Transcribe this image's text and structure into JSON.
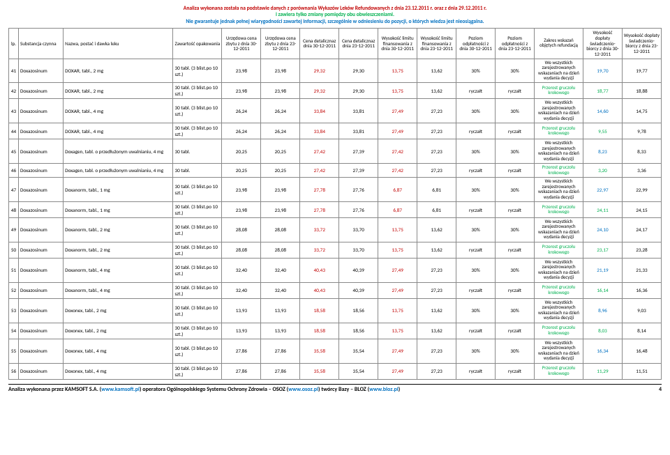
{
  "header": {
    "line1": "Analiza wykonana została na podstawie danych z porównania Wykazów Leków Refundowanych z dnia 23.12.2011 r. oraz z dnia 29.12.2011 r.",
    "line2": "i zawiera tylko zmiany pomiędzy obu obwieszczeniami.",
    "line3": "Nie gwarantuje jednak pełnej wiarygodności zawartej informacji, szczególnie w odniesieniu do pozycji, o których wiedza jest nieosiągalna."
  },
  "columns": [
    "lp.",
    "Substancja czynna",
    "Nazwa, postać i dawka leku",
    "Zawartość opakowania",
    "Urzędowa cena zbytu z dnia 30-12-2011",
    "Urzędowa cena zbytu z dnia 23-12-2011",
    "Cena detalicznaz dnia 30-12-2011",
    "Cena detalicznaz dnia 23-12-2011",
    "Wysokość limitu finansowania z dnia 30-12-2011",
    "Wysokość limitu finansowania z dnia 23-12-2011",
    "Poziom odpłatności z dnia 30-12-2011",
    "Poziom odpłatności z dnia 23-12-2011",
    "Zakres wskazań objętych refundacją",
    "Wysokość dopłaty świadczenio-biorcy z dnia 30-12-2011",
    "Wysokość dopłaty świadczenio-biorcy z dnia 23-12-2011"
  ],
  "scopes": {
    "all": "We wszystkich zarejestrowanych wskazaniach na dzień wydania decyzji",
    "przerost": "Przerost gruczołu krokowego"
  },
  "rows": [
    {
      "lp": "41",
      "sub": "Doxazosinum",
      "naz": "DOXAR, tabl., 2 mg",
      "zaw": "30 tabl. (3 blist.po 10 szt.)",
      "c1": "23,98",
      "c2": "23,98",
      "c3": "29,32",
      "c4": "29,30",
      "c5": "13,75",
      "c6": "13,62",
      "c7": "30%",
      "c8": "30%",
      "zak": "all",
      "d1": "19,70",
      "d2": "19,77"
    },
    {
      "lp": "42",
      "sub": "Doxazosinum",
      "naz": "DOXAR, tabl., 2 mg",
      "zaw": "30 tabl. (3 blist.po 10 szt.)",
      "c1": "23,98",
      "c2": "23,98",
      "c3": "29,32",
      "c4": "29,30",
      "c5": "13,75",
      "c6": "13,62",
      "c7": "ryczałt",
      "c8": "ryczałt",
      "zak": "przerost",
      "d1": "18,77",
      "d2": "18,88"
    },
    {
      "lp": "43",
      "sub": "Doxazosinum",
      "naz": "DOXAR, tabl., 4 mg",
      "zaw": "30 tabl. (3 blist.po 10 szt.)",
      "c1": "26,24",
      "c2": "26,24",
      "c3": "33,84",
      "c4": "33,81",
      "c5": "27,49",
      "c6": "27,23",
      "c7": "30%",
      "c8": "30%",
      "zak": "all",
      "d1": "14,60",
      "d2": "14,75"
    },
    {
      "lp": "44",
      "sub": "Doxazosinum",
      "naz": "DOXAR, tabl., 4 mg",
      "zaw": "30 tabl. (3 blist.po 10 szt.)",
      "c1": "26,24",
      "c2": "26,24",
      "c3": "33,84",
      "c4": "33,81",
      "c5": "27,49",
      "c6": "27,23",
      "c7": "ryczałt",
      "c8": "ryczałt",
      "zak": "przerost",
      "d1": "9,55",
      "d2": "9,78"
    },
    {
      "lp": "45",
      "sub": "Doxazosinum",
      "naz": "Doxagen, tabl. o przedłużonym uwalnianiu, 4 mg",
      "zaw": "30 tabl.",
      "c1": "20,25",
      "c2": "20,25",
      "c3": "27,42",
      "c4": "27,39",
      "c5": "27,42",
      "c6": "27,23",
      "c7": "30%",
      "c8": "30%",
      "zak": "all",
      "d1": "8,23",
      "d2": "8,33"
    },
    {
      "lp": "46",
      "sub": "Doxazosinum",
      "naz": "Doxagen, tabl. o przedłużonym uwalnianiu, 4 mg",
      "zaw": "30 tabl.",
      "c1": "20,25",
      "c2": "20,25",
      "c3": "27,42",
      "c4": "27,39",
      "c5": "27,42",
      "c6": "27,23",
      "c7": "ryczałt",
      "c8": "ryczałt",
      "zak": "przerost",
      "d1": "3,20",
      "d2": "3,36"
    },
    {
      "lp": "47",
      "sub": "Doxazosinum",
      "naz": "Doxanorm, tabl., 1 mg",
      "zaw": "30 tabl. (3 blist.po 10 szt.)",
      "c1": "23,98",
      "c2": "23,98",
      "c3": "27,78",
      "c4": "27,76",
      "c5": "6,87",
      "c6": "6,81",
      "c7": "30%",
      "c8": "30%",
      "zak": "all",
      "d1": "22,97",
      "d2": "22,99"
    },
    {
      "lp": "48",
      "sub": "Doxazosinum",
      "naz": "Doxanorm, tabl., 1 mg",
      "zaw": "30 tabl. (3 blist.po 10 szt.)",
      "c1": "23,98",
      "c2": "23,98",
      "c3": "27,78",
      "c4": "27,76",
      "c5": "6,87",
      "c6": "6,81",
      "c7": "ryczałt",
      "c8": "ryczałt",
      "zak": "przerost",
      "d1": "24,11",
      "d2": "24,15"
    },
    {
      "lp": "49",
      "sub": "Doxazosinum",
      "naz": "Doxanorm, tabl., 2 mg",
      "zaw": "30 tabl. (3 blist.po 10 szt.)",
      "c1": "28,08",
      "c2": "28,08",
      "c3": "33,72",
      "c4": "33,70",
      "c5": "13,75",
      "c6": "13,62",
      "c7": "30%",
      "c8": "30%",
      "zak": "all",
      "d1": "24,10",
      "d2": "24,17"
    },
    {
      "lp": "50",
      "sub": "Doxazosinum",
      "naz": "Doxanorm, tabl., 2 mg",
      "zaw": "30 tabl. (3 blist.po 10 szt.)",
      "c1": "28,08",
      "c2": "28,08",
      "c3": "33,72",
      "c4": "33,70",
      "c5": "13,75",
      "c6": "13,62",
      "c7": "ryczałt",
      "c8": "ryczałt",
      "zak": "przerost",
      "d1": "23,17",
      "d2": "23,28"
    },
    {
      "lp": "51",
      "sub": "Doxazosinum",
      "naz": "Doxanorm, tabl., 4 mg",
      "zaw": "30 tabl. (3 blist.po 10 szt.)",
      "c1": "32,40",
      "c2": "32,40",
      "c3": "40,43",
      "c4": "40,39",
      "c5": "27,49",
      "c6": "27,23",
      "c7": "30%",
      "c8": "30%",
      "zak": "all",
      "d1": "21,19",
      "d2": "21,33"
    },
    {
      "lp": "52",
      "sub": "Doxazosinum",
      "naz": "Doxanorm, tabl., 4 mg",
      "zaw": "30 tabl. (3 blist.po 10 szt.)",
      "c1": "32,40",
      "c2": "32,40",
      "c3": "40,43",
      "c4": "40,39",
      "c5": "27,49",
      "c6": "27,23",
      "c7": "ryczałt",
      "c8": "ryczałt",
      "zak": "przerost",
      "d1": "16,14",
      "d2": "16,36"
    },
    {
      "lp": "53",
      "sub": "Doxazosinum",
      "naz": "Doxonex, tabl., 2 mg",
      "zaw": "30 tabl. (3 blist.po 10 szt.)",
      "c1": "13,93",
      "c2": "13,93",
      "c3": "18,58",
      "c4": "18,56",
      "c5": "13,75",
      "c6": "13,62",
      "c7": "30%",
      "c8": "30%",
      "zak": "all",
      "d1": "8,96",
      "d2": "9,03"
    },
    {
      "lp": "54",
      "sub": "Doxazosinum",
      "naz": "Doxonex, tabl., 2 mg",
      "zaw": "30 tabl. (3 blist.po 10 szt.)",
      "c1": "13,93",
      "c2": "13,93",
      "c3": "18,58",
      "c4": "18,56",
      "c5": "13,75",
      "c6": "13,62",
      "c7": "ryczałt",
      "c8": "ryczałt",
      "zak": "przerost",
      "d1": "8,03",
      "d2": "8,14"
    },
    {
      "lp": "55",
      "sub": "Doxazosinum",
      "naz": "Doxonex, tabl., 4 mg",
      "zaw": "30 tabl. (3 blist.po 10 szt.)",
      "c1": "27,86",
      "c2": "27,86",
      "c3": "35,58",
      "c4": "35,54",
      "c5": "27,49",
      "c6": "27,23",
      "c7": "30%",
      "c8": "30%",
      "zak": "all",
      "d1": "16,34",
      "d2": "16,48"
    },
    {
      "lp": "56",
      "sub": "Doxazosinum",
      "naz": "Doxonex, tabl., 4 mg",
      "zaw": "30 tabl. (3 blist.po 10 szt.)",
      "c1": "27,86",
      "c2": "27,86",
      "c3": "35,58",
      "c4": "35,54",
      "c5": "27,49",
      "c6": "27,23",
      "c7": "ryczałt",
      "c8": "ryczałt",
      "zak": "przerost",
      "d1": "11,29",
      "d2": "11,51"
    }
  ],
  "footer": {
    "text_pre": "Analiza wykonana przez KAMSOFT S.A. (",
    "link1": "www.kamsoft.pl",
    "text_mid1": ") operatora Ogólnopolskiego Systemu Ochrony Zdrowia – OSOZ (",
    "link2": "www.osoz.pl",
    "text_mid2": ") twórcy Bazy – BLOZ (",
    "link3": "www.bloz.pl",
    "text_post": ")",
    "page": "4"
  }
}
